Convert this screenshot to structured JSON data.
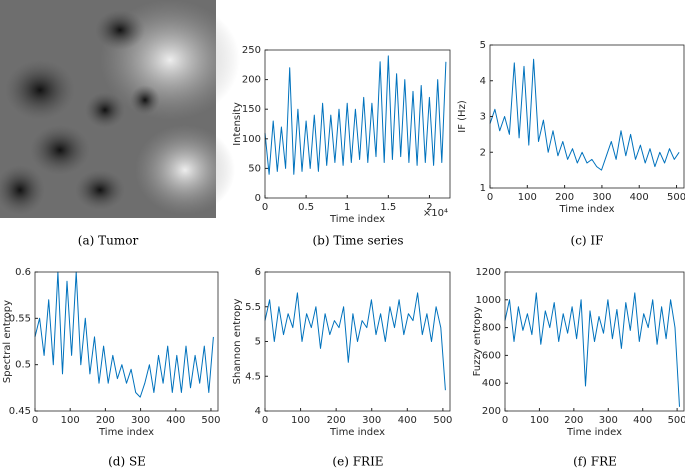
{
  "image_panel": {
    "caption": "(a) Tumor"
  },
  "chart_data": [
    {
      "type": "line",
      "caption": "(b) Time series",
      "xlabel": "Time index",
      "ylabel": "Intensity",
      "x_multiplier": "×10⁴",
      "color": "#0072bd",
      "xlim": [
        0,
        2.25
      ],
      "xticks": [
        0,
        0.5,
        1,
        1.5,
        2
      ],
      "ylim": [
        0,
        250
      ],
      "yticks": [
        0,
        50,
        100,
        150,
        200,
        250
      ],
      "x": [
        0,
        0.05,
        0.1,
        0.15,
        0.2,
        0.25,
        0.3,
        0.35,
        0.4,
        0.45,
        0.5,
        0.55,
        0.6,
        0.65,
        0.7,
        0.75,
        0.8,
        0.85,
        0.9,
        0.95,
        1.0,
        1.05,
        1.1,
        1.15,
        1.2,
        1.25,
        1.3,
        1.35,
        1.4,
        1.45,
        1.5,
        1.55,
        1.6,
        1.65,
        1.7,
        1.75,
        1.8,
        1.85,
        1.9,
        1.95,
        2.0,
        2.05,
        2.1,
        2.15,
        2.2
      ],
      "values": [
        110,
        40,
        130,
        45,
        120,
        50,
        220,
        40,
        150,
        45,
        130,
        50,
        140,
        45,
        160,
        55,
        140,
        60,
        150,
        55,
        160,
        60,
        150,
        65,
        170,
        60,
        160,
        70,
        230,
        60,
        240,
        65,
        210,
        70,
        200,
        60,
        180,
        55,
        190,
        60,
        170,
        55,
        200,
        60,
        230
      ]
    },
    {
      "type": "line",
      "caption": "(c) IF",
      "xlabel": "Time index",
      "ylabel": "IF (Hz)",
      "color": "#0072bd",
      "xlim": [
        0,
        520
      ],
      "xticks": [
        0,
        100,
        200,
        300,
        400,
        500
      ],
      "ylim": [
        1,
        5
      ],
      "yticks": [
        1,
        2,
        3,
        4,
        5
      ],
      "x": [
        0,
        13,
        26,
        39,
        52,
        65,
        78,
        91,
        104,
        117,
        130,
        143,
        156,
        169,
        182,
        195,
        208,
        221,
        234,
        247,
        260,
        273,
        286,
        299,
        312,
        325,
        338,
        351,
        364,
        377,
        390,
        403,
        416,
        429,
        442,
        455,
        468,
        481,
        494,
        507
      ],
      "values": [
        2.8,
        3.2,
        2.6,
        3.0,
        2.5,
        4.5,
        2.4,
        4.4,
        2.2,
        4.6,
        2.3,
        2.9,
        2.0,
        2.6,
        1.9,
        2.3,
        1.8,
        2.1,
        1.7,
        2.0,
        1.7,
        1.8,
        1.6,
        1.5,
        1.9,
        2.3,
        1.8,
        2.6,
        1.9,
        2.5,
        1.8,
        2.2,
        1.7,
        2.1,
        1.6,
        2.0,
        1.7,
        2.1,
        1.8,
        2.0
      ]
    },
    {
      "type": "line",
      "caption": "(d) SE",
      "xlabel": "Time index",
      "ylabel": "Spectral entropy",
      "color": "#0072bd",
      "xlim": [
        0,
        520
      ],
      "xticks": [
        0,
        100,
        200,
        300,
        400,
        500
      ],
      "ylim": [
        0.45,
        0.6
      ],
      "yticks": [
        0.45,
        0.5,
        0.55,
        0.6
      ],
      "x": [
        0,
        13,
        26,
        39,
        52,
        65,
        78,
        91,
        104,
        117,
        130,
        143,
        156,
        169,
        182,
        195,
        208,
        221,
        234,
        247,
        260,
        273,
        286,
        299,
        312,
        325,
        338,
        351,
        364,
        377,
        390,
        403,
        416,
        429,
        442,
        455,
        468,
        481,
        494,
        507
      ],
      "values": [
        0.53,
        0.55,
        0.51,
        0.57,
        0.5,
        0.6,
        0.49,
        0.59,
        0.51,
        0.6,
        0.5,
        0.55,
        0.49,
        0.53,
        0.48,
        0.52,
        0.48,
        0.51,
        0.485,
        0.5,
        0.48,
        0.495,
        0.47,
        0.465,
        0.48,
        0.5,
        0.47,
        0.51,
        0.48,
        0.52,
        0.47,
        0.51,
        0.47,
        0.52,
        0.475,
        0.51,
        0.48,
        0.52,
        0.47,
        0.53
      ]
    },
    {
      "type": "line",
      "caption": "(e) FRIE",
      "xlabel": "Time index",
      "ylabel": "Shannon entropy",
      "color": "#0072bd",
      "xlim": [
        0,
        520
      ],
      "xticks": [
        0,
        100,
        200,
        300,
        400,
        500
      ],
      "ylim": [
        4,
        6
      ],
      "yticks": [
        4,
        4.5,
        5,
        5.5,
        6
      ],
      "x": [
        0,
        13,
        26,
        39,
        52,
        65,
        78,
        91,
        104,
        117,
        130,
        143,
        156,
        169,
        182,
        195,
        208,
        221,
        234,
        247,
        260,
        273,
        286,
        299,
        312,
        325,
        338,
        351,
        364,
        377,
        390,
        403,
        416,
        429,
        442,
        455,
        468,
        481,
        494,
        507
      ],
      "values": [
        5.3,
        5.6,
        5.0,
        5.5,
        5.1,
        5.4,
        5.2,
        5.7,
        5.0,
        5.4,
        5.2,
        5.5,
        4.9,
        5.4,
        5.1,
        5.3,
        5.2,
        5.5,
        4.7,
        5.4,
        5.0,
        5.3,
        5.2,
        5.6,
        5.1,
        5.4,
        5.0,
        5.5,
        5.2,
        5.6,
        5.1,
        5.4,
        5.3,
        5.7,
        5.1,
        5.4,
        5.0,
        5.5,
        5.2,
        4.3
      ]
    },
    {
      "type": "line",
      "caption": "(f) FRE",
      "xlabel": "Time index",
      "ylabel": "Fuzzy entropy",
      "color": "#0072bd",
      "xlim": [
        0,
        520
      ],
      "xticks": [
        0,
        100,
        200,
        300,
        400,
        500
      ],
      "ylim": [
        200,
        1200
      ],
      "yticks": [
        200,
        400,
        600,
        800,
        1000,
        1200
      ],
      "x": [
        0,
        13,
        26,
        39,
        52,
        65,
        78,
        91,
        104,
        117,
        130,
        143,
        156,
        169,
        182,
        195,
        208,
        221,
        234,
        247,
        260,
        273,
        286,
        299,
        312,
        325,
        338,
        351,
        364,
        377,
        390,
        403,
        416,
        429,
        442,
        455,
        468,
        481,
        494,
        507
      ],
      "values": [
        850,
        1000,
        700,
        950,
        780,
        900,
        750,
        1050,
        680,
        920,
        800,
        980,
        700,
        900,
        760,
        950,
        720,
        1000,
        380,
        920,
        700,
        880,
        760,
        1000,
        720,
        930,
        650,
        980,
        780,
        1050,
        700,
        900,
        800,
        1000,
        680,
        950,
        720,
        1000,
        800,
        230
      ]
    }
  ]
}
